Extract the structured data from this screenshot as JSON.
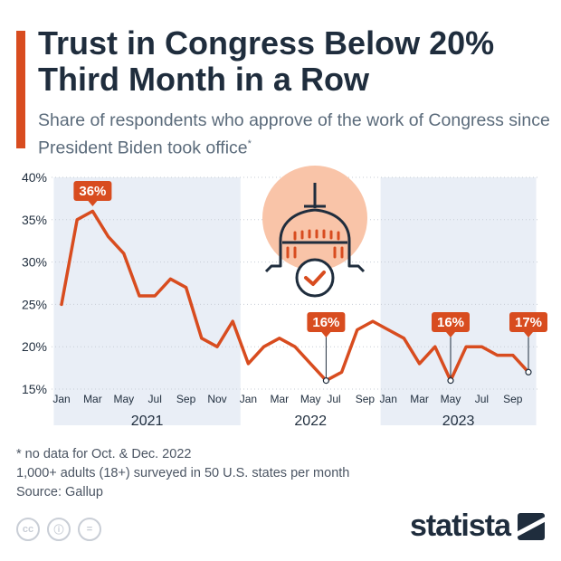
{
  "title": "Trust in Congress Below 20% Third Month in a Row",
  "subtitle": "Share of respondents who approve of the work of Congress since President Biden took office",
  "subtitle_mark": "*",
  "colors": {
    "accent": "#d84c1f",
    "band": "#e9eef6",
    "title": "#1f2d3d",
    "text": "#4b5563"
  },
  "chart_data": {
    "type": "line",
    "ylim": [
      15,
      40
    ],
    "yticks": [
      {
        "value": 40,
        "label": "40%"
      },
      {
        "value": 35,
        "label": "35%"
      },
      {
        "value": 30,
        "label": "30%"
      },
      {
        "value": 25,
        "label": "25%"
      },
      {
        "value": 20,
        "label": "20%"
      },
      {
        "value": 15,
        "label": "15%"
      }
    ],
    "series": [
      {
        "values": [
          25,
          35,
          36,
          33,
          31,
          26,
          26,
          28,
          27,
          21,
          20,
          23,
          18,
          20,
          21,
          20,
          18,
          16,
          17,
          22,
          23,
          22,
          21,
          18,
          20,
          16,
          20,
          20,
          19,
          19,
          17
        ]
      }
    ],
    "x_labels": [
      {
        "i": 0,
        "label": "Jan"
      },
      {
        "i": 2,
        "label": "Mar"
      },
      {
        "i": 4,
        "label": "May"
      },
      {
        "i": 6,
        "label": "Jul"
      },
      {
        "i": 8,
        "label": "Sep"
      },
      {
        "i": 10,
        "label": "Nov"
      },
      {
        "i": 12,
        "label": "Jan"
      },
      {
        "i": 14,
        "label": "Mar"
      },
      {
        "i": 16,
        "label": "May"
      },
      {
        "i": 17.5,
        "label": "Jul"
      },
      {
        "i": 19.5,
        "label": "Sep"
      },
      {
        "i": 21,
        "label": "Jan"
      },
      {
        "i": 23,
        "label": "Mar"
      },
      {
        "i": 25,
        "label": "May"
      },
      {
        "i": 27,
        "label": "Jul"
      },
      {
        "i": 29,
        "label": "Sep"
      }
    ],
    "years": [
      {
        "label": "2021",
        "from": -0.5,
        "to": 11.5,
        "shaded": true
      },
      {
        "label": "2022",
        "from": 11.5,
        "to": 20.5,
        "shaded": false
      },
      {
        "label": "2023",
        "from": 20.5,
        "to": 30.5,
        "shaded": true
      }
    ],
    "callouts": [
      {
        "i": 2,
        "label": "36%",
        "hollow": false
      },
      {
        "i": 17,
        "label": "16%",
        "hollow": true
      },
      {
        "i": 25,
        "label": "16%",
        "hollow": true
      },
      {
        "i": 30,
        "label": "17%",
        "hollow": true
      }
    ]
  },
  "footnotes": [
    "* no data for Oct. & Dec. 2022",
    "1,000+ adults (18+) surveyed in 50 U.S. states per month",
    "Source: Gallup"
  ],
  "licence_icons": [
    "cc-icon",
    "by-icon",
    "nd-icon"
  ],
  "licence_glyphs": [
    "cc",
    "ⓘ",
    "="
  ],
  "brand": "statista"
}
